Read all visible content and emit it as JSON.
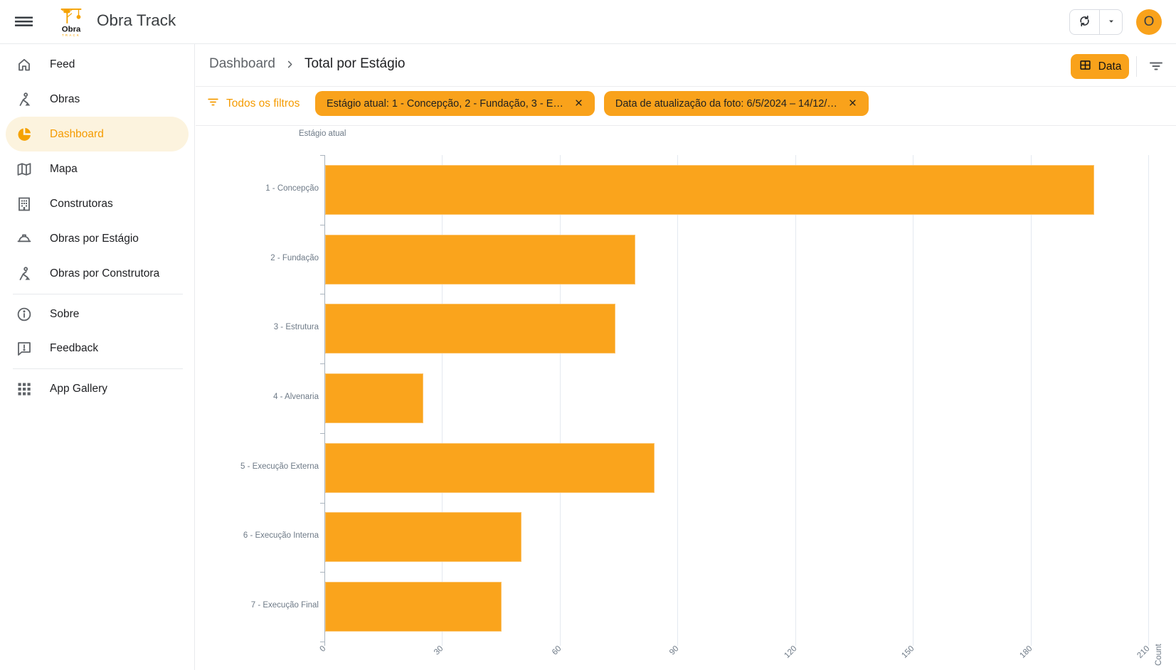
{
  "header": {
    "app_title": "Obra Track",
    "logo": {
      "line1": "Obra",
      "line2": "TRACK"
    },
    "avatar_letter": "O",
    "icons": [
      "menu-icon",
      "crane-logo-icon",
      "refresh-icon",
      "caret-down-icon",
      "avatar"
    ]
  },
  "sidebar": {
    "items": [
      {
        "label": "Feed",
        "icon": "home",
        "active": false
      },
      {
        "label": "Obras",
        "icon": "worker",
        "active": false
      },
      {
        "label": "Dashboard",
        "icon": "pie-chart",
        "active": true
      },
      {
        "label": "Mapa",
        "icon": "map",
        "active": false
      },
      {
        "label": "Construtoras",
        "icon": "building",
        "active": false
      },
      {
        "label": "Obras por Estágio",
        "icon": "hard-hat",
        "active": false
      },
      {
        "label": "Obras por Construtora",
        "icon": "worker",
        "active": false
      }
    ],
    "secondary_items": [
      {
        "label": "Sobre",
        "icon": "info",
        "active": false
      },
      {
        "label": "Feedback",
        "icon": "feedback",
        "active": false
      }
    ],
    "tertiary_items": [
      {
        "label": "App Gallery",
        "icon": "apps",
        "active": false
      }
    ]
  },
  "breadcrumb": {
    "parent": "Dashboard",
    "current": "Total por Estágio"
  },
  "toolbar": {
    "data_button_label": "Data",
    "icons": [
      "table-icon",
      "filter-lines-icon"
    ]
  },
  "filter_bar": {
    "all_filters_label": "Todos os filtros",
    "chips": [
      {
        "label": "Estágio atual: 1 - Concepção, 2 - Fundação, 3 - E…"
      },
      {
        "label": "Data de atualização da foto: 6/5/2024 – 14/12/…"
      }
    ]
  },
  "chart_data": {
    "type": "bar",
    "orientation": "horizontal",
    "title": "Estágio atual",
    "xlabel": "Count",
    "ylabel": "Estágio atual",
    "categories": [
      "1 - Concepção",
      "2 - Fundação",
      "3 - Estrutura",
      "4 - Alvenaria",
      "5 - Execução Externa",
      "6 - Execução Interna",
      "7 - Execução Final"
    ],
    "values": [
      196,
      79,
      74,
      25,
      84,
      50,
      45
    ],
    "xlim": [
      0,
      210
    ],
    "xticks": [
      0,
      30,
      60,
      90,
      120,
      150,
      180,
      210
    ],
    "grid": true,
    "legend": "none",
    "bar_color": "#FAA41C"
  },
  "colors": {
    "accent_orange": "#F9A21B",
    "accent_orange_text": "#F59B00",
    "active_item_bg": "#FCF3DE",
    "bar_orange": "#FAA41C",
    "chip_text": "#212121",
    "sidebar_icon": "#5F6368",
    "text_primary": "#202124",
    "text_secondary": "#5F6368",
    "chart_label": "#6E7A87",
    "gridline": "#E4E9F0",
    "axis": "#A9B3BD",
    "border": "#E8EAED"
  }
}
